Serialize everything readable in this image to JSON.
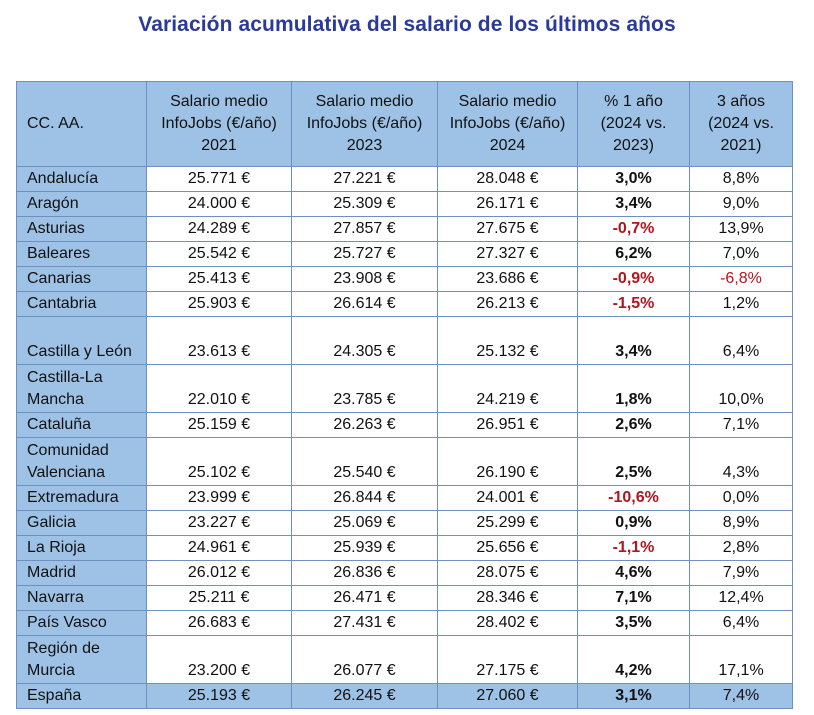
{
  "title": "Variación acumulativa del salario de los últimos años",
  "colors": {
    "title": "#2b3a9a",
    "header_bg": "#9ec2e6",
    "border": "#6f8fc0",
    "negative": "#b0161e"
  },
  "headers": [
    "CC. AA.",
    "Salario medio InfoJobs (€/año) 2021",
    "Salario medio InfoJobs (€/año) 2023",
    "Salario medio InfoJobs (€/año) 2024",
    "% 1 año (2024 vs. 2023)",
    "3 años (2024 vs. 2021)"
  ],
  "rows": [
    {
      "region": "Andalucía",
      "s2021": "25.771 €",
      "s2023": "27.221 €",
      "s2024": "28.048 €",
      "pct1": "3,0%",
      "pct3": "8,8%"
    },
    {
      "region": "Aragón",
      "s2021": "24.000 €",
      "s2023": "25.309 €",
      "s2024": "26.171 €",
      "pct1": "3,4%",
      "pct3": "9,0%"
    },
    {
      "region": "Asturias",
      "s2021": "24.289 €",
      "s2023": "27.857 €",
      "s2024": "27.675 €",
      "pct1": "-0,7%",
      "pct3": "13,9%"
    },
    {
      "region": "Baleares",
      "s2021": "25.542 €",
      "s2023": "25.727 €",
      "s2024": "27.327 €",
      "pct1": "6,2%",
      "pct3": "7,0%"
    },
    {
      "region": "Canarias",
      "s2021": "25.413 €",
      "s2023": "23.908 €",
      "s2024": "23.686 €",
      "pct1": "-0,9%",
      "pct3": "-6,8%"
    },
    {
      "region": "Cantabria",
      "s2021": "25.903 €",
      "s2023": "26.614 €",
      "s2024": "26.213 €",
      "pct1": "-1,5%",
      "pct3": "1,2%"
    },
    {
      "region": "Castilla y León",
      "s2021": "23.613 €",
      "s2023": "24.305 €",
      "s2024": "25.132 €",
      "pct1": "3,4%",
      "pct3": "6,4%"
    },
    {
      "region": "Castilla-La Mancha",
      "s2021": "22.010 €",
      "s2023": "23.785 €",
      "s2024": "24.219 €",
      "pct1": "1,8%",
      "pct3": "10,0%"
    },
    {
      "region": "Cataluña",
      "s2021": "25.159 €",
      "s2023": "26.263 €",
      "s2024": "26.951 €",
      "pct1": "2,6%",
      "pct3": "7,1%"
    },
    {
      "region": "Comunidad Valenciana",
      "s2021": "25.102 €",
      "s2023": "25.540 €",
      "s2024": "26.190 €",
      "pct1": "2,5%",
      "pct3": "4,3%"
    },
    {
      "region": "Extremadura",
      "s2021": "23.999 €",
      "s2023": "26.844 €",
      "s2024": "24.001 €",
      "pct1": "-10,6%",
      "pct3": "0,0%"
    },
    {
      "region": "Galicia",
      "s2021": "23.227 €",
      "s2023": "25.069 €",
      "s2024": "25.299 €",
      "pct1": "0,9%",
      "pct3": "8,9%"
    },
    {
      "region": "La Rioja",
      "s2021": "24.961 €",
      "s2023": "25.939 €",
      "s2024": "25.656 €",
      "pct1": "-1,1%",
      "pct3": "2,8%"
    },
    {
      "region": "Madrid",
      "s2021": "26.012 €",
      "s2023": "26.836 €",
      "s2024": "28.075 €",
      "pct1": "4,6%",
      "pct3": "7,9%"
    },
    {
      "region": "Navarra",
      "s2021": "25.211 €",
      "s2023": "26.471 €",
      "s2024": "28.346 €",
      "pct1": "7,1%",
      "pct3": "12,4%"
    },
    {
      "region": "País Vasco",
      "s2021": "26.683 €",
      "s2023": "27.431 €",
      "s2024": "28.402 €",
      "pct1": "3,5%",
      "pct3": "6,4%"
    },
    {
      "region": "Región de Murcia",
      "s2021": "23.200 €",
      "s2023": "26.077 €",
      "s2024": "27.175 €",
      "pct1": "4,2%",
      "pct3": "17,1%"
    },
    {
      "region": "España",
      "s2021": "25.193 €",
      "s2023": "26.245 €",
      "s2024": "27.060 €",
      "pct1": "3,1%",
      "pct3": "7,4%"
    }
  ]
}
